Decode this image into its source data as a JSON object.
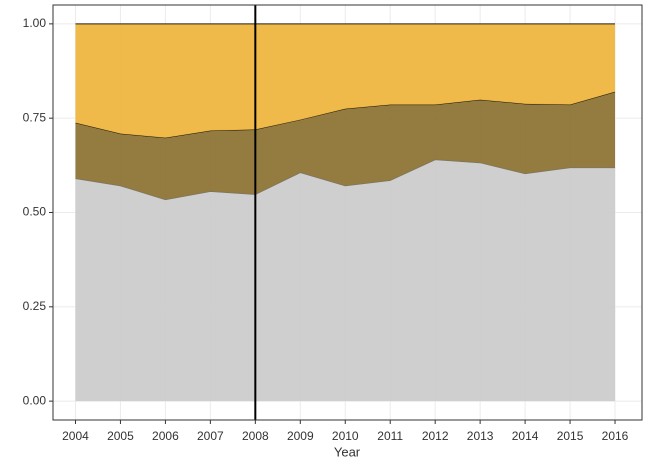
{
  "chart_data": {
    "type": "stacked-area",
    "x_label": "Year",
    "x": [
      2004,
      2005,
      2006,
      2007,
      2008,
      2009,
      2010,
      2011,
      2012,
      2013,
      2014,
      2015,
      2016
    ],
    "series": [
      {
        "color": "#cccccc",
        "values": [
          0.59,
          0.571,
          0.534,
          0.556,
          0.548,
          0.606,
          0.571,
          0.585,
          0.64,
          0.632,
          0.603,
          0.619,
          0.619
        ]
      },
      {
        "color": "#8e7436",
        "values": [
          0.148,
          0.138,
          0.164,
          0.161,
          0.172,
          0.14,
          0.204,
          0.201,
          0.146,
          0.167,
          0.185,
          0.167,
          0.201
        ]
      },
      {
        "color": "#eeb640",
        "values": [
          0.262,
          0.291,
          0.302,
          0.283,
          0.28,
          0.254,
          0.225,
          0.214,
          0.214,
          0.201,
          0.212,
          0.214,
          0.18
        ]
      }
    ],
    "xlim": [
      2003.5,
      2016.6
    ],
    "xticks": [
      2004,
      2005,
      2006,
      2007,
      2008,
      2009,
      2010,
      2011,
      2012,
      2013,
      2014,
      2015,
      2016
    ],
    "ylim": [
      -0.05,
      1.05
    ],
    "yticks": [
      {
        "value": 0,
        "label": "0.00"
      },
      {
        "value": 0.25,
        "label": "0.25"
      },
      {
        "value": 0.5,
        "label": "0.50"
      },
      {
        "value": 0.75,
        "label": "0.75"
      },
      {
        "value": 1,
        "label": "1.00"
      }
    ],
    "vline": 2008,
    "grid": true
  }
}
